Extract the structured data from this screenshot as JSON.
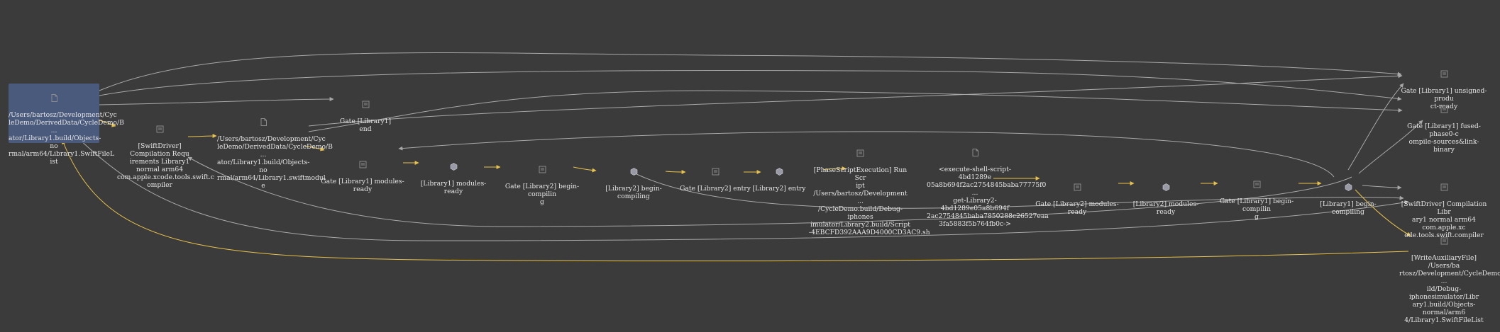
{
  "colors": {
    "background": "#3b3b3b",
    "edge_default": "#a8a8a8",
    "edge_yellow": "#e8c24a",
    "node_text": "#e6e6e6",
    "highlight": "#4a5a7c"
  },
  "nodes": {
    "filelist_source": {
      "icon": "doc-icon",
      "label": "/Users/bartosz/Development/Cyc\nleDemo/DerivedData/CycleDemo/B\n...\nator/Library1.build/Objects-no\nrmal/arm64/Library1.SwiftFileL\nist"
    },
    "swiftdriver_req": {
      "icon": "gate-icon",
      "label": "[SwiftDriver] Compilation Requ\nirements Library1 normal arm64\ncom.apple.xcode.tools.swift.c\nompiler"
    },
    "swiftmodule": {
      "icon": "doc-icon",
      "label": "/Users/bartosz/Development/Cyc\nleDemo/DerivedData/CycleDemo/B\n...\nator/Library1.build/Objects-no\nrmal/arm64/Library1.swiftmodul\ne"
    },
    "gate_lib1_end": {
      "icon": "gate-icon",
      "label": "Gate [Library1] end"
    },
    "gate_lib1_modules_ready": {
      "icon": "gate-icon",
      "label": "Gate [Library1] modules-ready"
    },
    "lib1_modules_ready": {
      "icon": "cube-icon",
      "label": "[Library1] modules-ready"
    },
    "gate_lib2_begin_compiling": {
      "icon": "gate-icon",
      "label": "Gate [Library2] begin-compilin\ng"
    },
    "lib2_begin_compiling": {
      "icon": "cube-icon",
      "label": "[Library2] begin-compiling"
    },
    "gate_lib2_entry": {
      "icon": "gate-icon",
      "label": "Gate [Library2] entry"
    },
    "lib2_entry": {
      "icon": "cube-icon",
      "label": "[Library2] entry"
    },
    "phase_script": {
      "icon": "gate-icon",
      "label": "[PhaseScriptExecution] Run Scr\nipt /Users/bartosz/Development\n...\n/CycleDemo.build/Debug-iphones\nimulator/Library2.build/Script\n-4EBCFD392AAA9D4000CD3AC9.sh"
    },
    "shell_script": {
      "icon": "doc-icon",
      "label": "<execute-shell-script-4bd1289e\n05a8b694f2ac2754845baba77775f0\n...\nget-Library2-4bd1289e05a8b694f\n2ac2754845baba7850288c26527eaa\n3fa5883f5b764fb0c->"
    },
    "gate_lib2_modules_ready": {
      "icon": "gate-icon",
      "label": "Gate [Library2] modules-ready"
    },
    "lib2_modules_ready": {
      "icon": "cube-icon",
      "label": "[Library2] modules-ready"
    },
    "gate_lib1_begin_compiling": {
      "icon": "gate-icon",
      "label": "Gate [Library1] begin-compilin\ng"
    },
    "lib1_begin_compiling": {
      "icon": "cube-icon",
      "label": "[Library1] begin-compiling"
    },
    "gate_unsigned": {
      "icon": "gate-icon",
      "label": "Gate [Library1] unsigned-produ\nct-ready"
    },
    "gate_fused": {
      "icon": "gate-icon",
      "label": "Gate [Library1] fused-phase0-c\nompile-sources&link-binary"
    },
    "swiftdriver_comp": {
      "icon": "gate-icon",
      "label": "[SwiftDriver] Compilation Libr\nary1 normal arm64 com.apple.xc\node.tools.swift.compiler"
    },
    "write_aux": {
      "icon": "gate-icon",
      "label": "[WriteAuxiliaryFile] /Users/ba\nrtosz/Development/CycleDemo/De\n...\nild/Debug-iphonesimulator/Libr\nary1.build/Objects-normal/arm6\n4/Library1.SwiftFileList"
    }
  }
}
